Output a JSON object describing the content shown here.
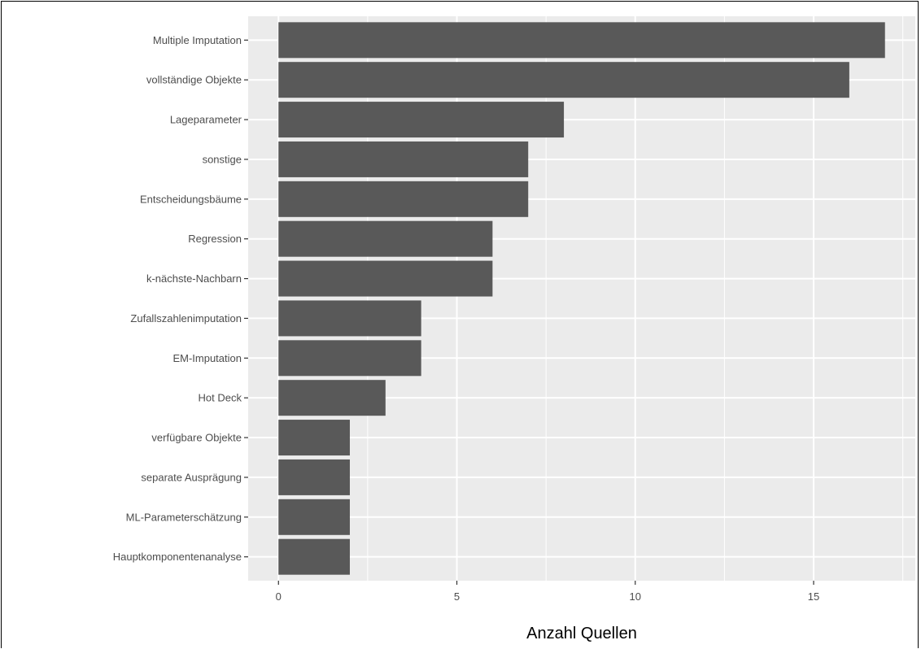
{
  "chart_data": {
    "type": "bar",
    "orientation": "horizontal",
    "title": "",
    "xlabel": "Anzahl Quellen",
    "ylabel": "",
    "categories": [
      "Multiple Imputation",
      "vollständige Objekte",
      "Lageparameter",
      "sonstige",
      "Entscheidungsbäume",
      "Regression",
      "k-nächste-Nachbarn",
      "Zufallszahlenimputation",
      "EM-Imputation",
      "Hot Deck",
      "verfügbare Objekte",
      "separate Ausprägung",
      "ML-Parameterschätzung",
      "Hauptkomponentenanalyse"
    ],
    "values": [
      17,
      16,
      8,
      7,
      7,
      6,
      6,
      4,
      4,
      3,
      2,
      2,
      2,
      2
    ],
    "xlim": [
      -0.85,
      17.85
    ],
    "xticks": [
      0,
      5,
      10,
      15
    ],
    "grid": true,
    "legend": "none",
    "bar_color": "#595959",
    "panel_color": "#ebebeb",
    "grid_color": "#ffffff"
  }
}
